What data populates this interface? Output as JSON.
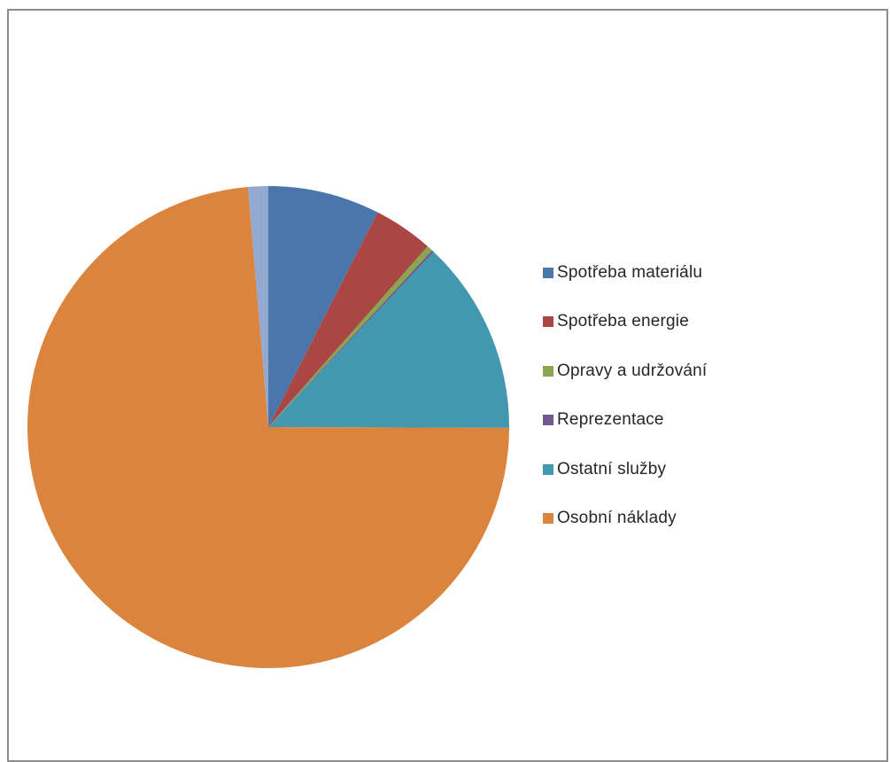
{
  "chart_data": {
    "type": "pie",
    "title": "",
    "legend_position": "right",
    "slices": [
      {
        "label": "Spotřeba materiálu",
        "value": 7.5,
        "color": "#4A76AB",
        "in_legend": true
      },
      {
        "label": "Spotřeba energie",
        "value": 4.0,
        "color": "#AA4643",
        "in_legend": true
      },
      {
        "label": "Opravy a udržování",
        "value": 0.4,
        "color": "#89A54E",
        "in_legend": true
      },
      {
        "label": "Reprezentace",
        "value": 0.15,
        "color": "#71588F",
        "in_legend": true
      },
      {
        "label": "Ostatní služby",
        "value": 13.0,
        "color": "#4198AF",
        "in_legend": true
      },
      {
        "label": "Osobní náklady",
        "value": 73.6,
        "color": "#DB843D",
        "in_legend": true
      },
      {
        "label": "",
        "value": 1.35,
        "color": "#93A9CF",
        "in_legend": false
      }
    ]
  }
}
